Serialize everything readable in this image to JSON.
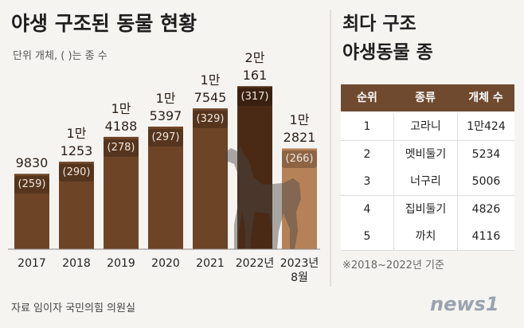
{
  "chart_data": {
    "type": "bar",
    "title": "야생 구조된 동물 현황",
    "subtitle": "단위 개체, ( )는 종 수",
    "categories": [
      "2017",
      "2018",
      "2019",
      "2020",
      "2021",
      "2022년",
      "2023년 8월"
    ],
    "values": [
      9830,
      11253,
      14188,
      15397,
      17545,
      20161,
      12821
    ],
    "value_labels": [
      [
        "9830"
      ],
      [
        "1만",
        "1253"
      ],
      [
        "1만",
        "4188"
      ],
      [
        "1만",
        "5397"
      ],
      [
        "1만",
        "7545"
      ],
      [
        "2만",
        "161"
      ],
      [
        "1만",
        "2821"
      ]
    ],
    "species_labels": [
      "(259)",
      "(290)",
      "(278)",
      "(297)",
      "(329)",
      "(317)",
      "(266)"
    ],
    "colors": [
      "#6e4427",
      "#6e4427",
      "#6e4427",
      "#6e4427",
      "#6e4427",
      "#4b2a15",
      "#b58258"
    ]
  },
  "side": {
    "title": [
      "최다 구조",
      "야생동물 종"
    ],
    "table": {
      "header": [
        "순위",
        "종류",
        "개체 수"
      ],
      "rows": [
        [
          "1",
          "고라니",
          "1만424"
        ],
        [
          "2",
          "멧비둘기",
          "5234"
        ],
        [
          "3",
          "너구리",
          "5006"
        ],
        [
          "4",
          "집비둘기",
          "4826"
        ],
        [
          "5",
          "까치",
          "4116"
        ]
      ]
    },
    "note": "※2018~2022년 기준"
  },
  "source": "자료 임이자 국민의힘 의원실",
  "logo": "news1"
}
